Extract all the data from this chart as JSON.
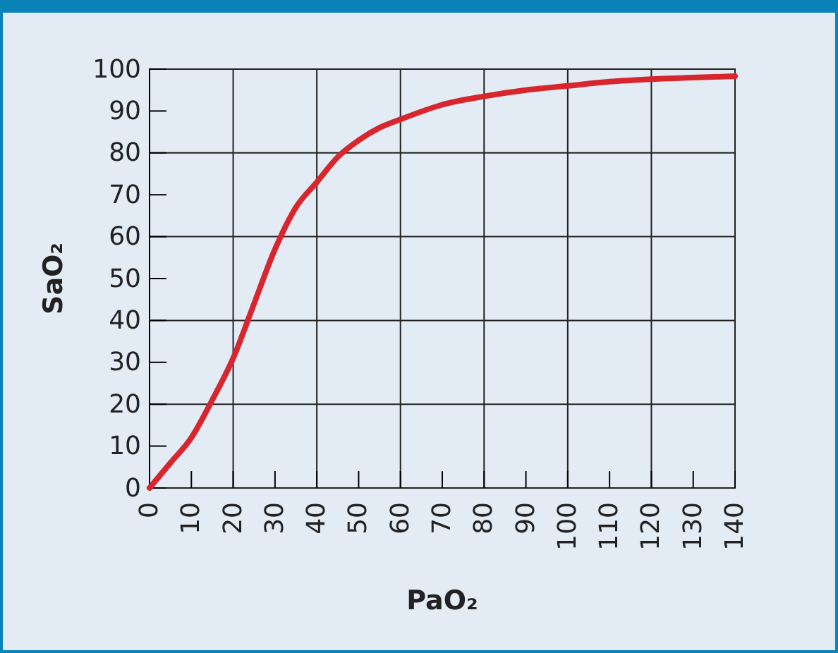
{
  "chart_data": {
    "type": "line",
    "xlabel": "PaO₂",
    "ylabel": "SaO₂",
    "x": [
      0,
      5,
      10,
      15,
      20,
      25,
      30,
      35,
      40,
      45,
      50,
      55,
      60,
      70,
      80,
      90,
      100,
      110,
      120,
      130,
      140
    ],
    "series": [
      {
        "color": "#d7262e",
        "values": [
          0,
          6,
          12,
          21,
          31,
          44,
          57,
          67,
          73,
          79,
          83,
          86,
          88,
          91.5,
          93.5,
          95,
          96,
          97,
          97.6,
          98,
          98.3
        ]
      }
    ],
    "xlim": [
      0,
      140
    ],
    "ylim": [
      0,
      100
    ],
    "xticks": [
      0,
      10,
      20,
      30,
      40,
      50,
      60,
      70,
      80,
      90,
      100,
      110,
      120,
      130,
      140
    ],
    "yticks": [
      0,
      10,
      20,
      30,
      40,
      50,
      60,
      70,
      80,
      90,
      100
    ],
    "grid": true,
    "marker": "none",
    "line_style": "solid"
  }
}
